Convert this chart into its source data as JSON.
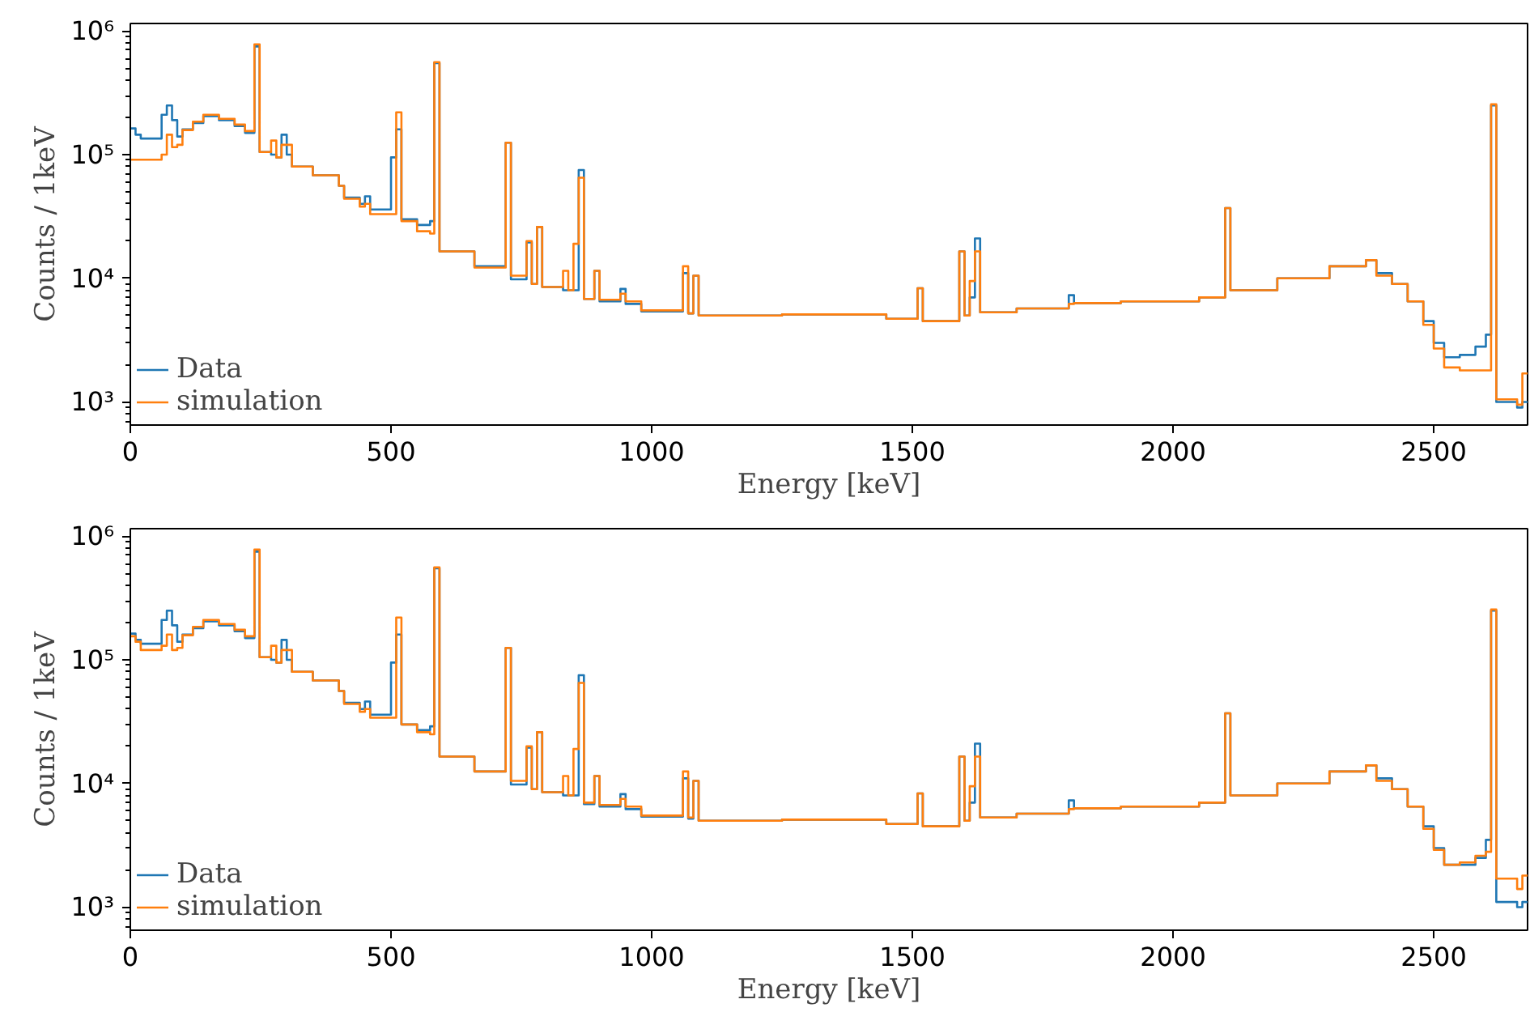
{
  "chart_data": [
    {
      "type": "histogram",
      "xlabel": "Energy [keV]",
      "ylabel": "Counts / 1keV",
      "log": "y",
      "grid": false,
      "legend": "bottom left",
      "xlim": [
        0,
        2680
      ],
      "xticks": [
        0,
        500,
        1000,
        1500,
        2000,
        2500
      ],
      "ylim": [
        650,
        1150000
      ],
      "yticks": [
        {
          "value": 1000,
          "label": "10³"
        },
        {
          "value": 10000,
          "label": "10⁴"
        },
        {
          "value": 100000,
          "label": "10⁵"
        },
        {
          "value": 1000000,
          "label": "10⁶"
        }
      ],
      "bins": [
        0,
        10,
        20,
        60,
        70,
        80,
        90,
        100,
        120,
        140,
        170,
        200,
        220,
        238,
        248,
        270,
        280,
        290,
        300,
        310,
        350,
        400,
        410,
        440,
        450,
        460,
        500,
        510,
        520,
        550,
        575,
        583,
        593,
        660,
        720,
        730,
        760,
        770,
        780,
        790,
        830,
        840,
        850,
        860,
        870,
        890,
        900,
        940,
        950,
        980,
        1060,
        1070,
        1080,
        1090,
        1250,
        1450,
        1510,
        1520,
        1590,
        1600,
        1610,
        1620,
        1630,
        1700,
        1800,
        1810,
        1900,
        2050,
        2100,
        2110,
        2200,
        2300,
        2370,
        2390,
        2420,
        2450,
        2480,
        2500,
        2520,
        2550,
        2580,
        2600,
        2610,
        2620,
        2660,
        2670,
        2680
      ],
      "series": [
        {
          "name": "Data",
          "color": "#1f77b4",
          "values": [
            163000,
            145000,
            135000,
            210000,
            250000,
            190000,
            140000,
            160000,
            180000,
            205000,
            190000,
            170000,
            150000,
            750000,
            105000,
            100000,
            95000,
            145000,
            100000,
            80000,
            68000,
            56000,
            45000,
            40000,
            46000,
            36000,
            95000,
            160000,
            30000,
            27000,
            29000,
            550000,
            16500,
            12500,
            125000,
            9800,
            19500,
            9000,
            26000,
            8500,
            8000,
            8000,
            8000,
            75000,
            6800,
            11500,
            6500,
            8200,
            6200,
            5400,
            11000,
            5200,
            10500,
            5000,
            5100,
            4700,
            8300,
            4500,
            16500,
            5000,
            7000,
            21000,
            5300,
            5700,
            7300,
            6300,
            6500,
            7000,
            37000,
            8000,
            10000,
            12500,
            14000,
            11000,
            9000,
            6500,
            4500,
            3000,
            2300,
            2400,
            2800,
            3500,
            250000,
            1000,
            900,
            1000
          ]
        },
        {
          "name": "simulation",
          "color": "#ff7f0e",
          "values": [
            91000,
            91000,
            91000,
            100000,
            145000,
            115000,
            120000,
            158000,
            185000,
            210000,
            195000,
            175000,
            155000,
            780000,
            105000,
            130000,
            95000,
            120000,
            120000,
            80000,
            68000,
            56000,
            44000,
            38000,
            40000,
            33000,
            33000,
            220000,
            29000,
            24000,
            23000,
            560000,
            16500,
            12200,
            125000,
            10500,
            20000,
            9000,
            26000,
            8500,
            11500,
            8000,
            19000,
            65000,
            6800,
            11500,
            6700,
            7500,
            6500,
            5500,
            12500,
            5200,
            10500,
            5000,
            5100,
            4700,
            8300,
            4500,
            16500,
            5000,
            9500,
            16500,
            5300,
            5700,
            6200,
            6300,
            6500,
            7000,
            37000,
            8000,
            10000,
            12500,
            14000,
            10500,
            9000,
            6500,
            4200,
            2700,
            1900,
            1800,
            1800,
            1800,
            255000,
            1050,
            950,
            1700
          ]
        }
      ]
    },
    {
      "type": "histogram",
      "xlabel": "Energy [keV]",
      "ylabel": "Counts / 1keV",
      "log": "y",
      "grid": false,
      "legend": "bottom left",
      "xlim": [
        0,
        2680
      ],
      "xticks": [
        0,
        500,
        1000,
        1500,
        2000,
        2500
      ],
      "ylim": [
        650,
        1150000
      ],
      "yticks": [
        {
          "value": 1000,
          "label": "10³"
        },
        {
          "value": 10000,
          "label": "10⁴"
        },
        {
          "value": 100000,
          "label": "10⁵"
        },
        {
          "value": 1000000,
          "label": "10⁶"
        }
      ],
      "bins": [
        0,
        10,
        20,
        60,
        70,
        80,
        90,
        100,
        120,
        140,
        170,
        200,
        220,
        238,
        248,
        270,
        280,
        290,
        300,
        310,
        350,
        400,
        410,
        440,
        450,
        460,
        500,
        510,
        520,
        550,
        575,
        583,
        593,
        660,
        720,
        730,
        760,
        770,
        780,
        790,
        830,
        840,
        850,
        860,
        870,
        890,
        900,
        940,
        950,
        980,
        1060,
        1070,
        1080,
        1090,
        1250,
        1450,
        1510,
        1520,
        1590,
        1600,
        1610,
        1620,
        1630,
        1700,
        1800,
        1810,
        1900,
        2050,
        2100,
        2110,
        2200,
        2300,
        2370,
        2390,
        2420,
        2450,
        2480,
        2500,
        2520,
        2550,
        2580,
        2600,
        2610,
        2620,
        2660,
        2670,
        2680
      ],
      "series": [
        {
          "name": "Data",
          "color": "#1f77b4",
          "values": [
            163000,
            145000,
            135000,
            210000,
            250000,
            190000,
            140000,
            160000,
            180000,
            205000,
            190000,
            170000,
            150000,
            750000,
            105000,
            100000,
            95000,
            145000,
            100000,
            80000,
            68000,
            56000,
            45000,
            40000,
            46000,
            36000,
            95000,
            160000,
            30000,
            27000,
            29000,
            550000,
            16500,
            12500,
            125000,
            9800,
            19500,
            9000,
            26000,
            8500,
            8000,
            8000,
            8000,
            75000,
            6800,
            11500,
            6500,
            8200,
            6200,
            5400,
            11000,
            5200,
            10500,
            5000,
            5100,
            4700,
            8300,
            4500,
            16500,
            5000,
            7000,
            21000,
            5300,
            5700,
            7300,
            6300,
            6500,
            7000,
            37000,
            8000,
            10000,
            12500,
            14000,
            11000,
            9000,
            6500,
            4500,
            3000,
            2200,
            2200,
            2500,
            3500,
            250000,
            1100,
            1000,
            1100
          ]
        },
        {
          "name": "simulation",
          "color": "#ff7f0e",
          "values": [
            155000,
            140000,
            120000,
            130000,
            160000,
            120000,
            125000,
            158000,
            185000,
            210000,
            195000,
            175000,
            155000,
            780000,
            105000,
            130000,
            95000,
            120000,
            120000,
            80000,
            68000,
            56000,
            44000,
            38000,
            40000,
            34000,
            34000,
            220000,
            30000,
            26000,
            25000,
            560000,
            16500,
            12500,
            125000,
            10500,
            20000,
            9000,
            26000,
            8500,
            11500,
            8000,
            19000,
            65000,
            7000,
            11500,
            6700,
            7500,
            6500,
            5500,
            12500,
            5300,
            10500,
            5000,
            5100,
            4700,
            8300,
            4500,
            16500,
            5000,
            9500,
            16500,
            5300,
            5700,
            6200,
            6300,
            6500,
            7000,
            37000,
            8000,
            10000,
            12500,
            14000,
            10500,
            9000,
            6500,
            4300,
            2900,
            2200,
            2300,
            2600,
            2800,
            255000,
            1700,
            1400,
            1800
          ]
        }
      ]
    }
  ]
}
